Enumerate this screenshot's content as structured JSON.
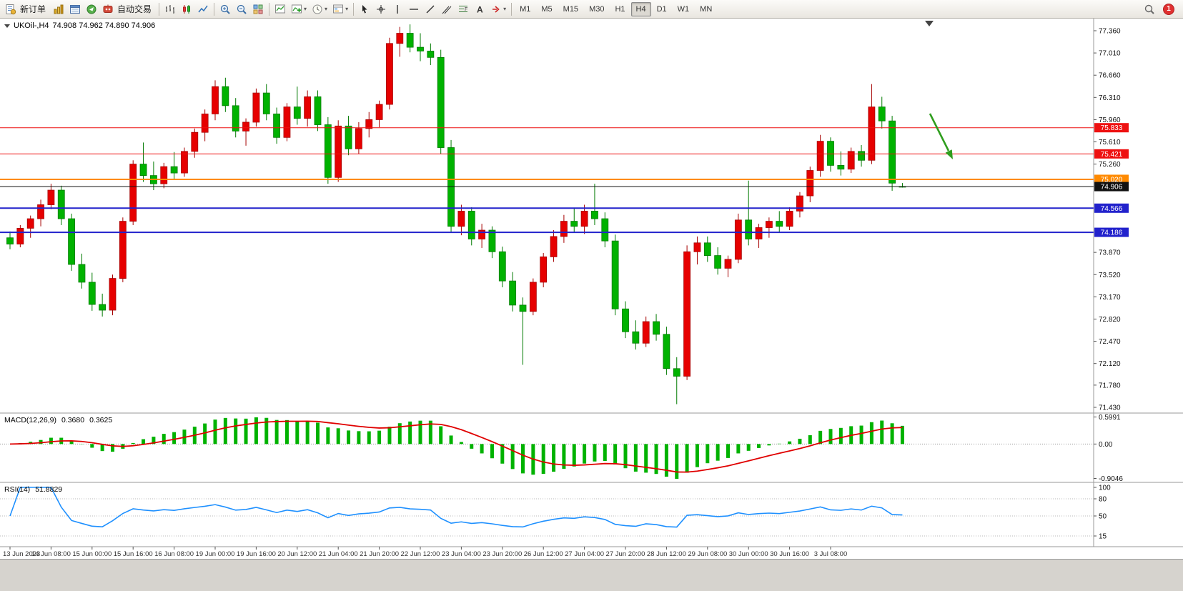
{
  "toolbar": {
    "new_order_label": "新订单",
    "autotrading_label": "自动交易",
    "timeframes": [
      "M1",
      "M5",
      "M15",
      "M30",
      "H1",
      "H4",
      "D1",
      "W1",
      "MN"
    ],
    "active_timeframe": "H4",
    "badge_count": "1"
  },
  "chart": {
    "title": "UKOil-,H4",
    "quote": "74.908 74.962 74.890 74.906"
  },
  "chart_data": {
    "type": "candlestick",
    "symbol": "UKOil",
    "timeframe": "H4",
    "ohlc_display": {
      "open": "74.908",
      "high": "74.962",
      "low": "74.890",
      "close": "74.906"
    },
    "colors": {
      "up": "#e60000",
      "up_border": "#a50000",
      "down": "#00b200",
      "down_border": "#007a00",
      "macd_hist": "#00b200",
      "macd_signal": "#e00000",
      "rsi_line": "#1e90ff",
      "axis_text": "#111111",
      "annotation_arrow": "#2f9e1e",
      "price_line": "#111111"
    },
    "price_axis": {
      "min": 71.43,
      "max": 77.36,
      "ticks": [
        "77.360",
        "77.010",
        "76.660",
        "76.310",
        "75.960",
        "75.610",
        "75.260",
        "73.870",
        "73.520",
        "73.170",
        "72.820",
        "72.470",
        "72.120",
        "71.780",
        "71.430"
      ]
    },
    "hlines": [
      {
        "value": 75.833,
        "label": "75.833",
        "color": "#ee1111",
        "width": 1
      },
      {
        "value": 75.421,
        "label": "75.421",
        "color": "#ee1111",
        "width": 1
      },
      {
        "value": 75.02,
        "label": "75.020",
        "color": "#ff8a00",
        "width": 2
      },
      {
        "value": 74.906,
        "label": "74.906",
        "color": "#111111",
        "width": 1
      },
      {
        "value": 74.566,
        "label": "74.566",
        "color": "#2222cc",
        "width": 2
      },
      {
        "value": 74.186,
        "label": "74.186",
        "color": "#2222cc",
        "width": 2
      }
    ],
    "candles": [
      [
        74.1,
        74.2,
        73.92,
        74.0
      ],
      [
        74.0,
        74.3,
        73.95,
        74.25
      ],
      [
        74.25,
        74.45,
        74.1,
        74.4
      ],
      [
        74.4,
        74.7,
        74.28,
        74.62
      ],
      [
        74.62,
        74.95,
        74.55,
        74.85
      ],
      [
        74.85,
        74.92,
        74.3,
        74.4
      ],
      [
        74.4,
        74.48,
        73.58,
        73.68
      ],
      [
        73.68,
        73.85,
        73.3,
        73.4
      ],
      [
        73.4,
        73.55,
        72.95,
        73.05
      ],
      [
        73.05,
        73.22,
        72.86,
        72.96
      ],
      [
        72.96,
        73.52,
        72.88,
        73.46
      ],
      [
        73.46,
        74.42,
        73.4,
        74.36
      ],
      [
        74.36,
        75.32,
        74.3,
        75.26
      ],
      [
        75.26,
        75.6,
        74.98,
        75.08
      ],
      [
        75.08,
        75.3,
        74.85,
        74.95
      ],
      [
        74.95,
        75.28,
        74.88,
        75.22
      ],
      [
        75.22,
        75.45,
        75.02,
        75.12
      ],
      [
        75.12,
        75.52,
        75.06,
        75.46
      ],
      [
        75.46,
        75.82,
        75.36,
        75.76
      ],
      [
        75.76,
        76.12,
        75.62,
        76.05
      ],
      [
        76.05,
        76.58,
        75.95,
        76.48
      ],
      [
        76.48,
        76.62,
        76.08,
        76.18
      ],
      [
        76.18,
        76.3,
        75.68,
        75.78
      ],
      [
        75.78,
        75.98,
        75.55,
        75.92
      ],
      [
        75.92,
        76.45,
        75.85,
        76.38
      ],
      [
        76.38,
        76.52,
        75.95,
        76.05
      ],
      [
        76.05,
        76.15,
        75.58,
        75.68
      ],
      [
        75.68,
        76.22,
        75.62,
        76.16
      ],
      [
        76.16,
        76.48,
        75.88,
        75.98
      ],
      [
        75.98,
        76.42,
        75.85,
        76.32
      ],
      [
        76.32,
        76.42,
        75.78,
        75.88
      ],
      [
        75.88,
        76.0,
        74.95,
        75.05
      ],
      [
        75.05,
        75.95,
        74.98,
        75.86
      ],
      [
        75.86,
        76.02,
        75.4,
        75.5
      ],
      [
        75.5,
        75.92,
        75.42,
        75.82
      ],
      [
        75.82,
        76.08,
        75.68,
        75.96
      ],
      [
        75.96,
        76.26,
        75.84,
        76.2
      ],
      [
        76.2,
        77.25,
        76.12,
        77.16
      ],
      [
        77.16,
        77.42,
        76.95,
        77.32
      ],
      [
        77.32,
        77.46,
        77.02,
        77.1
      ],
      [
        77.1,
        77.32,
        76.88,
        77.04
      ],
      [
        77.04,
        77.16,
        76.82,
        76.94
      ],
      [
        76.94,
        77.06,
        75.42,
        75.52
      ],
      [
        75.52,
        75.64,
        74.18,
        74.28
      ],
      [
        74.28,
        74.62,
        74.14,
        74.52
      ],
      [
        74.52,
        74.58,
        73.98,
        74.08
      ],
      [
        74.08,
        74.32,
        73.94,
        74.22
      ],
      [
        74.22,
        74.28,
        73.78,
        73.88
      ],
      [
        73.88,
        73.96,
        73.32,
        73.42
      ],
      [
        73.42,
        73.56,
        72.94,
        73.04
      ],
      [
        73.04,
        73.16,
        72.1,
        72.94
      ],
      [
        72.94,
        73.46,
        72.88,
        73.4
      ],
      [
        73.4,
        73.86,
        73.32,
        73.8
      ],
      [
        73.8,
        74.22,
        73.72,
        74.12
      ],
      [
        74.12,
        74.46,
        74.02,
        74.36
      ],
      [
        74.36,
        74.56,
        74.18,
        74.28
      ],
      [
        74.28,
        74.62,
        74.16,
        74.52
      ],
      [
        74.52,
        74.95,
        74.3,
        74.4
      ],
      [
        74.4,
        74.5,
        73.95,
        74.05
      ],
      [
        74.05,
        74.15,
        72.88,
        72.98
      ],
      [
        72.98,
        73.1,
        72.52,
        72.62
      ],
      [
        72.62,
        72.8,
        72.34,
        72.44
      ],
      [
        72.44,
        72.86,
        72.38,
        72.78
      ],
      [
        72.78,
        72.9,
        72.48,
        72.58
      ],
      [
        72.58,
        72.7,
        71.94,
        72.04
      ],
      [
        72.04,
        72.22,
        71.48,
        71.92
      ],
      [
        71.92,
        73.98,
        71.86,
        73.88
      ],
      [
        73.88,
        74.12,
        73.68,
        74.02
      ],
      [
        74.02,
        74.12,
        73.72,
        73.82
      ],
      [
        73.82,
        73.95,
        73.52,
        73.62
      ],
      [
        73.62,
        73.82,
        73.48,
        73.76
      ],
      [
        73.76,
        74.48,
        73.7,
        74.38
      ],
      [
        74.38,
        75.0,
        73.98,
        74.08
      ],
      [
        74.08,
        74.32,
        73.94,
        74.26
      ],
      [
        74.26,
        74.42,
        74.1,
        74.36
      ],
      [
        74.36,
        74.52,
        74.18,
        74.28
      ],
      [
        74.28,
        74.58,
        74.22,
        74.52
      ],
      [
        74.52,
        74.82,
        74.42,
        74.76
      ],
      [
        74.76,
        75.22,
        74.66,
        75.16
      ],
      [
        75.16,
        75.72,
        75.06,
        75.62
      ],
      [
        75.62,
        75.68,
        75.14,
        75.24
      ],
      [
        75.24,
        75.46,
        75.08,
        75.18
      ],
      [
        75.18,
        75.52,
        75.12,
        75.46
      ],
      [
        75.46,
        75.56,
        75.22,
        75.32
      ],
      [
        75.32,
        76.52,
        75.26,
        76.16
      ],
      [
        76.16,
        76.32,
        75.82,
        75.94
      ],
      [
        75.94,
        76.02,
        74.84,
        74.96
      ],
      [
        74.908,
        74.962,
        74.89,
        74.906
      ]
    ],
    "time_labels": [
      "13 Jun 2023",
      "14 Jun 08:00",
      "15 Jun 00:00",
      "15 Jun 16:00",
      "16 Jun 08:00",
      "19 Jun 00:00",
      "19 Jun 16:00",
      "20 Jun 12:00",
      "21 Jun 04:00",
      "21 Jun 20:00",
      "22 Jun 12:00",
      "23 Jun 04:00",
      "23 Jun 20:00",
      "26 Jun 12:00",
      "27 Jun 04:00",
      "27 Jun 20:00",
      "28 Jun 12:00",
      "29 Jun 08:00",
      "30 Jun 00:00",
      "30 Jun 16:00",
      "3 Jul 08:00"
    ],
    "indicators": {
      "macd": {
        "label": "MACD(12,26,9)",
        "value_main": "0.3680",
        "value_signal": "0.3625",
        "scale_max": "0.5991",
        "scale_zero": "0.00",
        "scale_min": "-0.9046",
        "params": [
          12,
          26,
          9
        ]
      },
      "rsi": {
        "label": "RSI(14)",
        "value": "51.8829",
        "levels": [
          100,
          80,
          50,
          15
        ],
        "params": [
          14
        ]
      }
    }
  }
}
